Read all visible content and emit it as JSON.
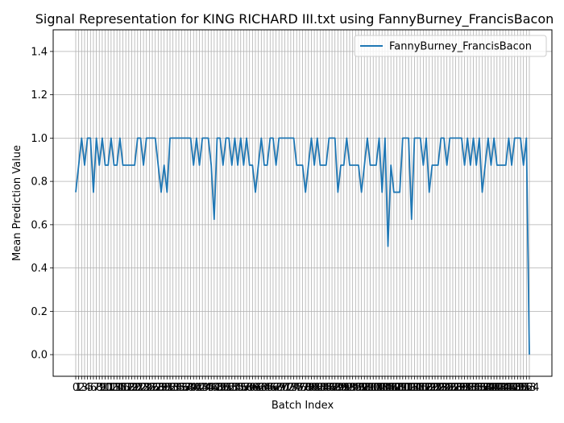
{
  "chart_data": {
    "type": "line",
    "title": "Signal Representation for KING RICHARD III.txt using FannyBurney_FrancisBacon",
    "xlabel": "Batch Index",
    "ylabel": "Mean Prediction Value",
    "ylim": [
      -0.1,
      1.5
    ],
    "yticks": [
      "0.0",
      "0.2",
      "0.4",
      "0.6",
      "0.8",
      "1.0",
      "1.2",
      "1.4"
    ],
    "grid": true,
    "legend_position": "top-right",
    "series": [
      {
        "name": "FannyBurney_FrancisBacon",
        "color": "#1f77b4",
        "values": [
          0.75,
          0.875,
          1.0,
          0.875,
          1.0,
          1.0,
          0.75,
          1.0,
          0.875,
          1.0,
          0.875,
          0.875,
          1.0,
          0.875,
          0.875,
          1.0,
          0.875,
          0.875,
          0.875,
          0.875,
          0.875,
          1.0,
          1.0,
          0.875,
          1.0,
          1.0,
          1.0,
          1.0,
          0.875,
          0.75,
          0.875,
          0.75,
          1.0,
          1.0,
          1.0,
          1.0,
          1.0,
          1.0,
          1.0,
          1.0,
          0.875,
          1.0,
          0.875,
          1.0,
          1.0,
          1.0,
          0.875,
          0.625,
          1.0,
          1.0,
          0.875,
          1.0,
          1.0,
          0.875,
          1.0,
          0.875,
          1.0,
          0.875,
          1.0,
          0.875,
          0.875,
          0.75,
          0.875,
          1.0,
          0.875,
          0.875,
          1.0,
          1.0,
          0.875,
          1.0,
          1.0,
          1.0,
          1.0,
          1.0,
          1.0,
          0.875,
          0.875,
          0.875,
          0.75,
          0.875,
          1.0,
          0.875,
          1.0,
          0.875,
          0.875,
          0.875,
          1.0,
          1.0,
          1.0,
          0.75,
          0.875,
          0.875,
          1.0,
          0.875,
          0.875,
          0.875,
          0.875,
          0.75,
          0.875,
          1.0,
          0.875,
          0.875,
          0.875,
          1.0,
          0.75,
          1.0,
          0.5,
          0.875,
          0.75,
          0.75,
          0.75,
          1.0,
          1.0,
          1.0,
          0.625,
          1.0,
          1.0,
          1.0,
          0.875,
          1.0,
          0.75,
          0.875,
          0.875,
          0.875,
          1.0,
          1.0,
          0.875,
          1.0,
          1.0,
          1.0,
          1.0,
          1.0,
          0.875,
          1.0,
          0.875,
          1.0,
          0.875,
          1.0,
          0.75,
          0.875,
          1.0,
          0.875,
          1.0,
          0.875,
          0.875,
          0.875,
          0.875,
          1.0,
          0.875,
          1.0,
          1.0,
          1.0,
          0.875,
          1.0,
          0.0
        ]
      }
    ]
  }
}
